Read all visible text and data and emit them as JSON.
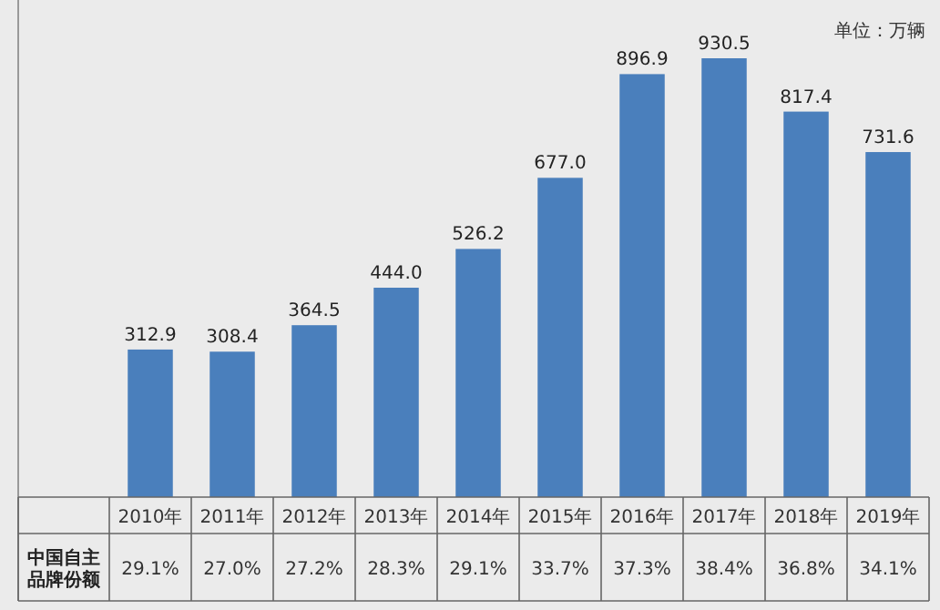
{
  "chart_data": {
    "type": "bar",
    "subtitle": "单位：万辆",
    "categories": [
      "2010年",
      "2011年",
      "2012年",
      "2013年",
      "2014年",
      "2015年",
      "2016年",
      "2017年",
      "2018年",
      "2019年"
    ],
    "series": [
      {
        "color": "#4a7fbc",
        "values": [
          312.9,
          308.4,
          364.5,
          444.0,
          526.2,
          677.0,
          896.9,
          930.5,
          817.4,
          731.6
        ],
        "value_labels": [
          "312.9",
          "308.4",
          "364.5",
          "444.0",
          "526.2",
          "677.0",
          "896.9",
          "930.5",
          "817.4",
          "731.6"
        ]
      }
    ],
    "annotations": [
      "中国自主品牌份额",
      "29.1%",
      "27.0%",
      "27.2%",
      "28.3%",
      "29.1%",
      "33.7%",
      "37.3%",
      "38.4%",
      "36.8%",
      "34.1%"
    ]
  }
}
